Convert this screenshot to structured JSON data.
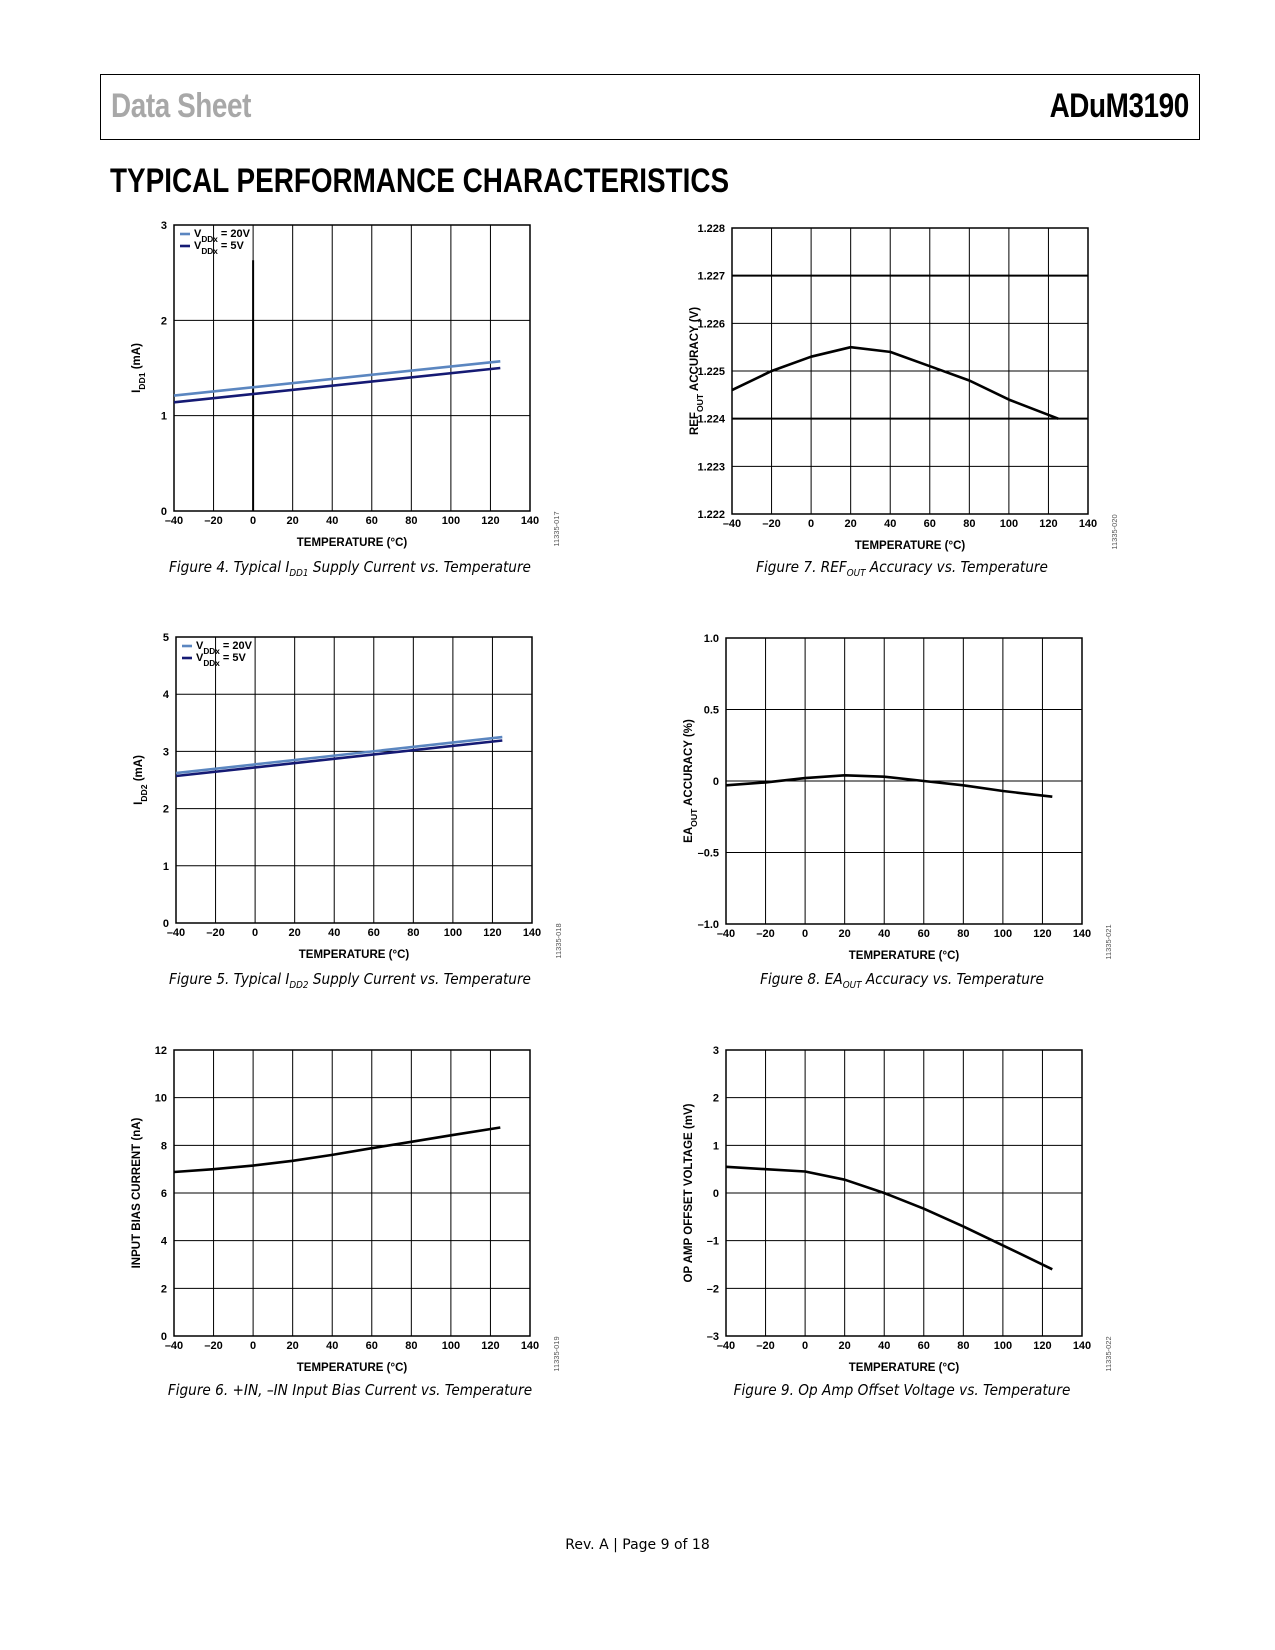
{
  "header": {
    "left": "Data Sheet",
    "right": "ADuM3190"
  },
  "section_title": "TYPICAL PERFORMANCE CHARACTERISTICS",
  "footer": "Rev. A | Page 9 of 18",
  "chart_data": [
    {
      "id": "fig4",
      "type": "line",
      "caption": {
        "pre": "Figure 4. Typical I",
        "sub": "DD1",
        "post": " Supply Current vs. Temperature"
      },
      "ylabel": {
        "pre": "I",
        "sub": "DD1",
        "post": " (mA)"
      },
      "xlabel": "TEMPERATURE (°C)",
      "code": "11335-017",
      "xlim": [
        -40,
        140
      ],
      "ylim": [
        0,
        3
      ],
      "xticks": [
        -40,
        -20,
        0,
        20,
        40,
        60,
        80,
        100,
        120,
        140
      ],
      "xtick_labels": [
        "–40",
        "–20",
        "0",
        "20",
        "40",
        "60",
        "80",
        "100",
        "120",
        "140"
      ],
      "yticks": [
        0,
        1,
        2,
        3
      ],
      "ytick_labels": [
        "0",
        "1",
        "2",
        "3"
      ],
      "legend": [
        {
          "pre": "V",
          "sub": "DDx",
          "post": " = 20V",
          "color": "#5b86c0"
        },
        {
          "pre": "V",
          "sub": "DDx",
          "post": " = 5V",
          "color": "#151a74"
        }
      ],
      "series": [
        {
          "color": "#5b86c0",
          "points": [
            [
              -40,
              1.21
            ],
            [
              125,
              1.57
            ]
          ]
        },
        {
          "color": "#151a74",
          "points": [
            [
              -40,
              1.14
            ],
            [
              125,
              1.5
            ]
          ]
        }
      ],
      "vline": {
        "x": 0,
        "y_top": 2.63
      }
    },
    {
      "id": "fig5",
      "type": "line",
      "caption": {
        "pre": "Figure 5. Typical I",
        "sub": "DD2",
        "post": " Supply Current vs. Temperature"
      },
      "ylabel": {
        "pre": "I",
        "sub": "DD2",
        "post": " (mA)"
      },
      "xlabel": "TEMPERATURE (°C)",
      "code": "11335-018",
      "xlim": [
        -40,
        140
      ],
      "ylim": [
        0,
        5
      ],
      "xticks": [
        -40,
        -20,
        0,
        20,
        40,
        60,
        80,
        100,
        120,
        140
      ],
      "xtick_labels": [
        "–40",
        "–20",
        "0",
        "20",
        "40",
        "60",
        "80",
        "100",
        "120",
        "140"
      ],
      "yticks": [
        0,
        1,
        2,
        3,
        4,
        5
      ],
      "ytick_labels": [
        "0",
        "1",
        "2",
        "3",
        "4",
        "5"
      ],
      "legend": [
        {
          "pre": "V",
          "sub": "DDx",
          "post": " = 20V",
          "color": "#5b86c0"
        },
        {
          "pre": "V",
          "sub": "DDx",
          "post": " = 5V",
          "color": "#151a74"
        }
      ],
      "series": [
        {
          "color": "#5b86c0",
          "points": [
            [
              -40,
              2.62
            ],
            [
              125,
              3.25
            ]
          ]
        },
        {
          "color": "#151a74",
          "points": [
            [
              -40,
              2.57
            ],
            [
              125,
              3.19
            ]
          ]
        }
      ]
    },
    {
      "id": "fig6",
      "type": "line",
      "caption": {
        "pre": "Figure 6. +IN, –IN Input Bias Current vs. Temperature",
        "sub": "",
        "post": ""
      },
      "ylabel": {
        "pre": "INPUT BIAS CURRENT (nA)",
        "sub": "",
        "post": ""
      },
      "xlabel": "TEMPERATURE (°C)",
      "code": "11335-019",
      "xlim": [
        -40,
        140
      ],
      "ylim": [
        0,
        12
      ],
      "xticks": [
        -40,
        -20,
        0,
        20,
        40,
        60,
        80,
        100,
        120,
        140
      ],
      "xtick_labels": [
        "–40",
        "–20",
        "0",
        "20",
        "40",
        "60",
        "80",
        "100",
        "120",
        "140"
      ],
      "yticks": [
        0,
        2,
        4,
        6,
        8,
        10,
        12
      ],
      "ytick_labels": [
        "0",
        "2",
        "4",
        "6",
        "8",
        "10",
        "12"
      ],
      "series": [
        {
          "color": "#000000",
          "points": [
            [
              -40,
              6.88
            ],
            [
              -20,
              7.0
            ],
            [
              0,
              7.15
            ],
            [
              20,
              7.35
            ],
            [
              40,
              7.6
            ],
            [
              60,
              7.88
            ],
            [
              80,
              8.15
            ],
            [
              100,
              8.42
            ],
            [
              125,
              8.75
            ]
          ]
        }
      ]
    },
    {
      "id": "fig7",
      "type": "line",
      "caption": {
        "pre": "Figure 7. REF",
        "sub": "OUT",
        "post": " Accuracy vs. Temperature"
      },
      "ylabel": {
        "pre": "REF",
        "sub": "OUT",
        "post": " ACCURACY (V)"
      },
      "xlabel": "TEMPERATURE (°C)",
      "code": "11335-020",
      "xlim": [
        -40,
        140
      ],
      "ylim": [
        1.222,
        1.228
      ],
      "xticks": [
        -40,
        -20,
        0,
        20,
        40,
        60,
        80,
        100,
        120,
        140
      ],
      "xtick_labels": [
        "–40",
        "–20",
        "0",
        "20",
        "40",
        "60",
        "80",
        "100",
        "120",
        "140"
      ],
      "yticks": [
        1.222,
        1.223,
        1.224,
        1.225,
        1.226,
        1.227,
        1.228
      ],
      "ytick_labels": [
        "1.222",
        "1.223",
        "1.224",
        "1.225",
        "1.226",
        "1.227",
        "1.228"
      ],
      "thick_y": [
        1.227,
        1.224
      ],
      "series": [
        {
          "color": "#000000",
          "points": [
            [
              -40,
              1.2246
            ],
            [
              -20,
              1.225
            ],
            [
              0,
              1.2253
            ],
            [
              20,
              1.2255
            ],
            [
              40,
              1.2254
            ],
            [
              60,
              1.2251
            ],
            [
              80,
              1.2248
            ],
            [
              100,
              1.2244
            ],
            [
              125,
              1.224
            ]
          ]
        }
      ]
    },
    {
      "id": "fig8",
      "type": "line",
      "caption": {
        "pre": "Figure 8. EA",
        "sub": "OUT",
        "post": " Accuracy vs. Temperature"
      },
      "ylabel": {
        "pre": "EA",
        "sub": "OUT",
        "post": " ACCURACY (%)"
      },
      "xlabel": "TEMPERATURE (°C)",
      "code": "11335-021",
      "xlim": [
        -40,
        140
      ],
      "ylim": [
        -1.0,
        1.0
      ],
      "xticks": [
        -40,
        -20,
        0,
        20,
        40,
        60,
        80,
        100,
        120,
        140
      ],
      "xtick_labels": [
        "–40",
        "–20",
        "0",
        "20",
        "40",
        "60",
        "80",
        "100",
        "120",
        "140"
      ],
      "yticks": [
        -1.0,
        -0.5,
        0,
        0.5,
        1.0
      ],
      "ytick_labels": [
        "–1.0",
        "–0.5",
        "0",
        "0.5",
        "1.0"
      ],
      "series": [
        {
          "color": "#000000",
          "points": [
            [
              -40,
              -0.03
            ],
            [
              -20,
              -0.01
            ],
            [
              0,
              0.02
            ],
            [
              20,
              0.04
            ],
            [
              40,
              0.03
            ],
            [
              60,
              0.0
            ],
            [
              80,
              -0.03
            ],
            [
              100,
              -0.07
            ],
            [
              125,
              -0.11
            ]
          ]
        }
      ]
    },
    {
      "id": "fig9",
      "type": "line",
      "caption": {
        "pre": "Figure 9. Op Amp Offset Voltage vs. Temperature",
        "sub": "",
        "post": ""
      },
      "ylabel": {
        "pre": "OP AMP OFFSET VOLTAGE (mV)",
        "sub": "",
        "post": ""
      },
      "xlabel": "TEMPERATURE (°C)",
      "code": "11335-022",
      "xlim": [
        -40,
        140
      ],
      "ylim": [
        -3,
        3
      ],
      "xticks": [
        -40,
        -20,
        0,
        20,
        40,
        60,
        80,
        100,
        120,
        140
      ],
      "xtick_labels": [
        "–40",
        "–20",
        "0",
        "20",
        "40",
        "60",
        "80",
        "100",
        "120",
        "140"
      ],
      "yticks": [
        -3,
        -2,
        -1,
        0,
        1,
        2,
        3
      ],
      "ytick_labels": [
        "–3",
        "–2",
        "–1",
        "0",
        "1",
        "2",
        "3"
      ],
      "series": [
        {
          "color": "#000000",
          "points": [
            [
              -40,
              0.55
            ],
            [
              -20,
              0.5
            ],
            [
              0,
              0.45
            ],
            [
              20,
              0.28
            ],
            [
              40,
              0.0
            ],
            [
              60,
              -0.33
            ],
            [
              80,
              -0.7
            ],
            [
              100,
              -1.1
            ],
            [
              125,
              -1.6
            ]
          ]
        }
      ]
    }
  ]
}
